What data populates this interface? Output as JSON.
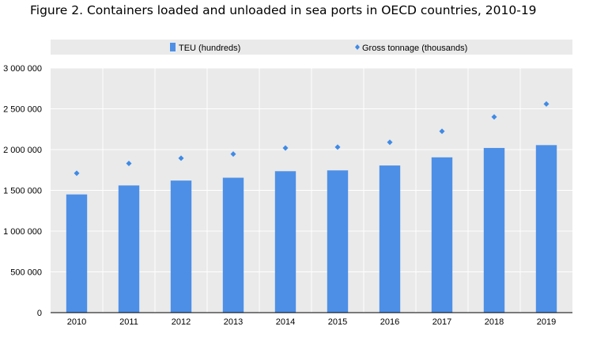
{
  "title": "Figure 2. Containers loaded and unloaded in sea ports in OECD countries, 2010-19",
  "colors": {
    "bar": "#4d8fe6",
    "marker": "#3f8ae6",
    "grid": "#ffffff",
    "plot_bg": "#eaeaea",
    "legend_bg": "#eaeaea"
  },
  "chart_data": {
    "type": "bar",
    "categories": [
      "2010",
      "2011",
      "2012",
      "2013",
      "2014",
      "2015",
      "2016",
      "2017",
      "2018",
      "2019"
    ],
    "series": [
      {
        "name": "TEU (hundreds)",
        "type": "bar",
        "values": [
          1450000,
          1560000,
          1620000,
          1655000,
          1735000,
          1745000,
          1805000,
          1905000,
          2020000,
          2055000
        ]
      },
      {
        "name": "Gross tonnage (thousands)",
        "type": "scatter",
        "marker": "diamond",
        "values": [
          1710000,
          1830000,
          1895000,
          1945000,
          2020000,
          2030000,
          2090000,
          2225000,
          2400000,
          2560000
        ]
      }
    ],
    "ylim": [
      0,
      3000000
    ],
    "yticks": [
      0,
      500000,
      1000000,
      1500000,
      2000000,
      2500000,
      3000000
    ],
    "ytick_labels": [
      "0",
      "500 000",
      "1 000 000",
      "1 500 000",
      "2 000 000",
      "2 500 000",
      "3 000 000"
    ],
    "grid": true,
    "legend_position": "top"
  }
}
